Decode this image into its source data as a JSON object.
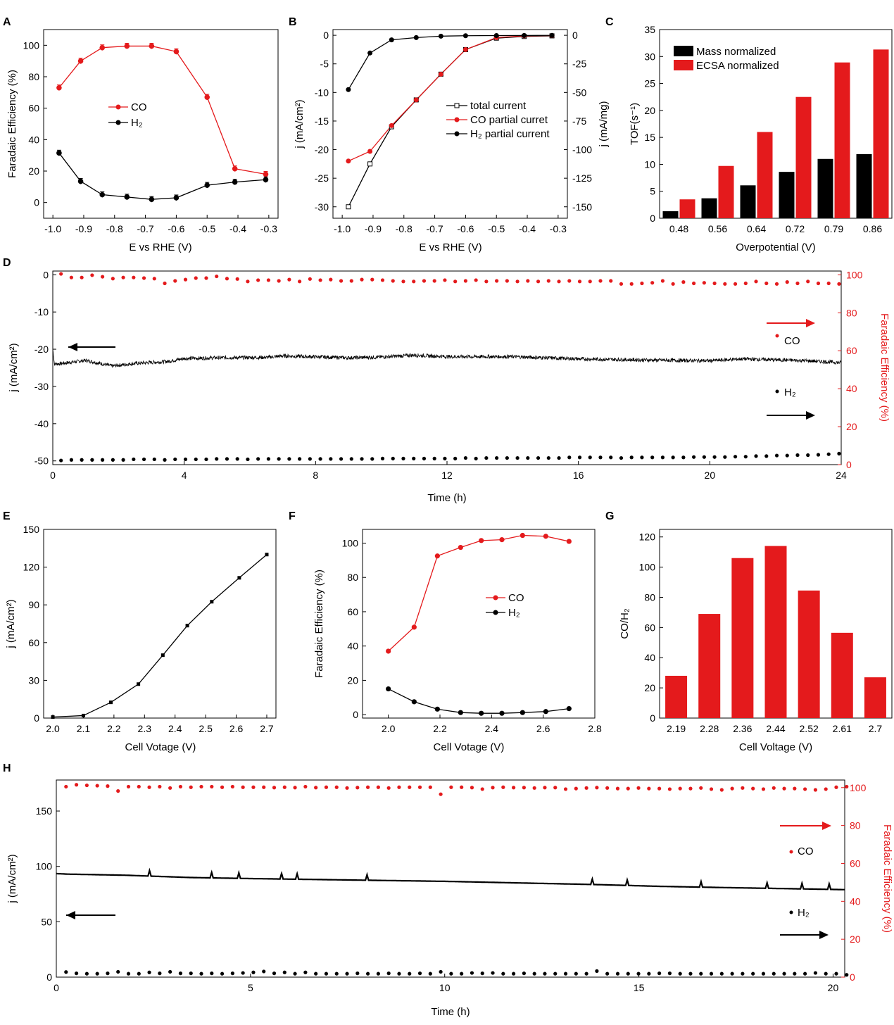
{
  "colors": {
    "red": "#e41a1c",
    "black": "#000000"
  },
  "chart_data": [
    {
      "panel": "A",
      "type": "line",
      "xlabel": "E vs RHE (V)",
      "ylabel": "Faradaic Efficiency (%)",
      "xlim": [
        -1.03,
        -0.27
      ],
      "ylim": [
        -10,
        110
      ],
      "xticks": [
        "-1.0",
        "-0.9",
        "-0.8",
        "-0.7",
        "-0.6",
        "-0.5",
        "-0.4",
        "-0.3"
      ],
      "xtick_values": [
        -1.0,
        -0.9,
        -0.8,
        -0.7,
        -0.6,
        -0.5,
        -0.4,
        -0.3
      ],
      "yticks": [
        "0",
        "20",
        "40",
        "60",
        "80",
        "100"
      ],
      "ytick_values": [
        0,
        20,
        40,
        60,
        80,
        100
      ],
      "legend": [
        "CO",
        "H₂"
      ],
      "series": [
        {
          "name": "CO",
          "color": "#e41a1c",
          "x": [
            -0.98,
            -0.91,
            -0.84,
            -0.76,
            -0.68,
            -0.6,
            -0.5,
            -0.41,
            -0.31
          ],
          "y": [
            73,
            90,
            98.5,
            99.5,
            99.5,
            96,
            67,
            21.5,
            18
          ]
        },
        {
          "name": "H₂",
          "color": "#000000",
          "x": [
            -0.98,
            -0.91,
            -0.84,
            -0.76,
            -0.68,
            -0.6,
            -0.5,
            -0.41,
            -0.31
          ],
          "y": [
            31.5,
            13.5,
            5,
            3.5,
            2,
            3,
            11,
            13,
            14.5
          ]
        }
      ]
    },
    {
      "panel": "B",
      "type": "line",
      "xlabel": "E vs RHE (V)",
      "ylabel": "j (mA/cm²)",
      "ylabel_right": "j (mA/mg)",
      "xlim": [
        -1.03,
        -0.27
      ],
      "ylim": [
        -32,
        1
      ],
      "ylim_right": [
        -160,
        5
      ],
      "xticks": [
        "-1.0",
        "-0.9",
        "-0.8",
        "-0.7",
        "-0.6",
        "-0.5",
        "-0.4",
        "-0.3"
      ],
      "xtick_values": [
        -1.0,
        -0.9,
        -0.8,
        -0.7,
        -0.6,
        -0.5,
        -0.4,
        -0.3
      ],
      "yticks": [
        "0",
        "-5",
        "-10",
        "-15",
        "-20",
        "-25",
        "-30"
      ],
      "ytick_values": [
        0,
        -5,
        -10,
        -15,
        -20,
        -25,
        -30
      ],
      "yticks_right": [
        "0",
        "-25",
        "-50",
        "-75",
        "-100",
        "-125",
        "-150"
      ],
      "ytick_values_right": [
        0,
        -25,
        -50,
        -75,
        -100,
        -125,
        -150
      ],
      "legend": [
        "total current",
        "CO partial curret",
        "H₂ partial current"
      ],
      "series": [
        {
          "name": "total current",
          "color": "#000000",
          "x": [
            -0.98,
            -0.91,
            -0.84,
            -0.76,
            -0.68,
            -0.6,
            -0.5,
            -0.41,
            -0.32
          ],
          "y": [
            -30,
            -22.5,
            -16,
            -11.3,
            -6.8,
            -2.5,
            -0.5,
            -0.2,
            -0.1
          ]
        },
        {
          "name": "CO partial curret",
          "color": "#e41a1c",
          "x": [
            -0.98,
            -0.91,
            -0.84,
            -0.76,
            -0.68,
            -0.6,
            -0.5,
            -0.41,
            -0.32
          ],
          "y": [
            -22,
            -20.3,
            -15.8,
            -11.3,
            -6.8,
            -2.5,
            -0.4,
            -0.1,
            -0.05
          ]
        },
        {
          "name": "H₂ partial current",
          "color": "#000000",
          "x": [
            -0.98,
            -0.91,
            -0.84,
            -0.76,
            -0.68,
            -0.6,
            -0.5,
            -0.41,
            -0.32
          ],
          "y": [
            -9.5,
            -3.1,
            -0.8,
            -0.4,
            -0.15,
            -0.08,
            -0.05,
            -0.03,
            -0.02
          ]
        }
      ]
    },
    {
      "panel": "C",
      "type": "bar",
      "xlabel": "Overpotential (V)",
      "ylabel": "TOF(s⁻¹)",
      "ylim": [
        0,
        35
      ],
      "yticks": [
        "0",
        "5",
        "10",
        "15",
        "20",
        "25",
        "30",
        "35"
      ],
      "ytick_values": [
        0,
        5,
        10,
        15,
        20,
        25,
        30,
        35
      ],
      "categories": [
        "0.48",
        "0.56",
        "0.64",
        "0.72",
        "0.79",
        "0.86"
      ],
      "legend": [
        "Mass normalized",
        "ECSA normalized"
      ],
      "series": [
        {
          "name": "Mass normalized",
          "color": "#000000",
          "values": [
            1.3,
            3.7,
            6.1,
            8.6,
            11.0,
            11.9
          ]
        },
        {
          "name": "ECSA normalized",
          "color": "#e41a1c",
          "values": [
            3.5,
            9.7,
            16.0,
            22.5,
            28.9,
            31.3
          ]
        }
      ]
    },
    {
      "panel": "D",
      "type": "line",
      "xlabel": "Time (h)",
      "ylabel": "j (mA/cm²)",
      "ylabel_right": "Faradaic Efficiency (%)",
      "xlim": [
        0,
        24
      ],
      "ylim": [
        -51,
        1
      ],
      "ylim_right": [
        0,
        102
      ],
      "xticks": [
        "0",
        "4",
        "8",
        "12",
        "16",
        "20",
        "24"
      ],
      "xtick_values": [
        0,
        4,
        8,
        12,
        16,
        20,
        24
      ],
      "yticks": [
        "0",
        "-10",
        "-20",
        "-30",
        "-40",
        "-50"
      ],
      "ytick_values": [
        0,
        -10,
        -20,
        -30,
        -40,
        -50
      ],
      "yticks_right": [
        "0",
        "20",
        "40",
        "60",
        "80",
        "100"
      ],
      "ytick_values_right": [
        0,
        20,
        40,
        60,
        80,
        100
      ],
      "annotations": [
        "CO",
        "H₂"
      ],
      "series": [
        {
          "name": "j",
          "color": "#000000",
          "t": [
            0,
            0.05,
            0.3,
            1,
            1.8,
            2.5,
            3.5,
            4,
            5,
            6.5,
            7,
            9,
            10,
            11,
            12,
            14,
            15,
            16,
            18,
            20,
            21,
            23,
            24
          ],
          "y": [
            -20,
            -24,
            -23.8,
            -23,
            -24.5,
            -23.8,
            -23.3,
            -22.5,
            -22.3,
            -22.2,
            -21.8,
            -22.3,
            -22.1,
            -21.6,
            -22,
            -22,
            -22.3,
            -22.6,
            -22.9,
            -23.1,
            -22.6,
            -23.1,
            -23.6
          ]
        },
        {
          "name": "CO",
          "color": "#e41a1c",
          "y": [
            100.5,
            98.6,
            98.6,
            99.8,
            99,
            98,
            98.6,
            98.6,
            98.3,
            98,
            95.5,
            96.8,
            97.5,
            98.3,
            98.3,
            99.2,
            98,
            97.8,
            96.5,
            97.2,
            97.2,
            96.8,
            97.5,
            96.5,
            97.8,
            97.2,
            97.5,
            96.8,
            96.8,
            97.5,
            97.5,
            97.2,
            96.8,
            96.5,
            96.5,
            96.8,
            96.8,
            97.2,
            96.5,
            96.8,
            97.2,
            96.5,
            96.8,
            96.8,
            96.5,
            96.8,
            96.5,
            96.8,
            96.5,
            96.8,
            96.5,
            96.5,
            96.8,
            96.8,
            95.2,
            95.2,
            95.5,
            95.8,
            96.8,
            95.2,
            96.2,
            95.5,
            95.8,
            95.5,
            95.2,
            95.2,
            95.5,
            96.5,
            95.5,
            95.2,
            96.2,
            95.5,
            96.5,
            95.5,
            95.5,
            95.2
          ]
        },
        {
          "name": "H₂",
          "color": "#000000",
          "y": [
            2.2,
            2.5,
            2.5,
            2.5,
            2.5,
            2.5,
            2.5,
            2.8,
            2.8,
            2.8,
            2.5,
            2.8,
            2.8,
            2.8,
            2.8,
            3,
            3,
            3,
            2.8,
            3,
            3,
            3,
            3,
            3,
            3,
            3,
            3,
            3,
            3,
            3,
            3,
            3.2,
            3.2,
            3.2,
            3.2,
            3.2,
            3.2,
            3.2,
            3.2,
            3.5,
            3.2,
            3.5,
            3.5,
            3.5,
            3.5,
            3.5,
            3.5,
            3.5,
            3.5,
            3.8,
            3.8,
            3.8,
            3.8,
            3.8,
            3.5,
            3.8,
            3.8,
            3.8,
            3.8,
            3.8,
            3.8,
            4,
            4,
            4,
            4,
            4.2,
            4.2,
            4.5,
            4.5,
            4.8,
            4.8,
            5,
            5,
            5.2,
            5.5,
            5.8
          ]
        }
      ]
    },
    {
      "panel": "E",
      "type": "line",
      "xlabel": "Cell Votage (V)",
      "ylabel": "j (mA/cm²)",
      "xlim": [
        1.97,
        2.73
      ],
      "ylim": [
        0,
        150
      ],
      "xticks": [
        "2.0",
        "2.1",
        "2.2",
        "2.3",
        "2.4",
        "2.5",
        "2.6",
        "2.7"
      ],
      "xtick_values": [
        2.0,
        2.1,
        2.2,
        2.3,
        2.4,
        2.5,
        2.6,
        2.7
      ],
      "yticks": [
        "0",
        "30",
        "60",
        "90",
        "120",
        "150"
      ],
      "ytick_values": [
        0,
        30,
        60,
        90,
        120,
        150
      ],
      "series": [
        {
          "name": "j",
          "color": "#000000",
          "x": [
            2.0,
            2.1,
            2.19,
            2.28,
            2.36,
            2.44,
            2.52,
            2.61,
            2.7
          ],
          "y": [
            0.8,
            2,
            12.5,
            27,
            50,
            73.5,
            92.5,
            111.5,
            130
          ]
        }
      ]
    },
    {
      "panel": "F",
      "type": "line",
      "xlabel": "Cell Votage (V)",
      "ylabel": "Faradaic Efficiency (%)",
      "xlim": [
        1.9,
        2.8
      ],
      "ylim": [
        -2,
        108
      ],
      "xticks": [
        "2.0",
        "2.2",
        "2.4",
        "2.6",
        "2.8"
      ],
      "xtick_values": [
        2.0,
        2.2,
        2.4,
        2.6,
        2.8
      ],
      "yticks": [
        "0",
        "20",
        "40",
        "60",
        "80",
        "100"
      ],
      "ytick_values": [
        0,
        20,
        40,
        60,
        80,
        100
      ],
      "legend": [
        "CO",
        "H₂"
      ],
      "series": [
        {
          "name": "CO",
          "color": "#e41a1c",
          "x": [
            2.0,
            2.1,
            2.19,
            2.28,
            2.36,
            2.44,
            2.52,
            2.61,
            2.7
          ],
          "y": [
            37,
            51,
            92.5,
            97.5,
            101.5,
            102,
            104.5,
            104,
            101
          ]
        },
        {
          "name": "H₂",
          "color": "#000000",
          "x": [
            2.0,
            2.1,
            2.19,
            2.28,
            2.36,
            2.44,
            2.52,
            2.61,
            2.7
          ],
          "y": [
            15,
            7.5,
            3.2,
            1.2,
            0.8,
            0.8,
            1.2,
            1.8,
            3.5
          ]
        }
      ]
    },
    {
      "panel": "G",
      "type": "bar",
      "xlabel": "Cell Voltage (V)",
      "ylabel": "CO/H₂",
      "ylim": [
        0,
        125
      ],
      "yticks": [
        "0",
        "20",
        "40",
        "60",
        "80",
        "100",
        "120"
      ],
      "ytick_values": [
        0,
        20,
        40,
        60,
        80,
        100,
        120
      ],
      "categories": [
        "2.19",
        "2.28",
        "2.36",
        "2.44",
        "2.52",
        "2.61",
        "2.7"
      ],
      "series": [
        {
          "name": "CO/H₂",
          "color": "#e41a1c",
          "values": [
            28,
            69,
            106,
            114,
            84.5,
            56.5,
            27
          ]
        }
      ]
    },
    {
      "panel": "H",
      "type": "line",
      "xlabel": "Time (h)",
      "ylabel": "j (mA/cm²)",
      "ylabel_right": "Faradaic Efficiency (%)",
      "xlim": [
        0,
        20.3
      ],
      "ylim": [
        0,
        178
      ],
      "ylim_right": [
        0,
        104
      ],
      "xticks": [
        "0",
        "5",
        "10",
        "15",
        "20"
      ],
      "xtick_values": [
        0,
        5,
        10,
        15,
        20
      ],
      "yticks": [
        "0",
        "50",
        "100",
        "150"
      ],
      "ytick_values": [
        0,
        50,
        100,
        150
      ],
      "yticks_right": [
        "0",
        "20",
        "40",
        "60",
        "80",
        "100"
      ],
      "ytick_values_right": [
        0,
        20,
        40,
        60,
        80,
        100
      ],
      "annotations": [
        "CO",
        "H₂"
      ],
      "series": [
        {
          "name": "j",
          "color": "#000000",
          "t": [
            0,
            0.3,
            1.8,
            3.4,
            5,
            7,
            10,
            12,
            14,
            15.5,
            17,
            20.3
          ],
          "y": [
            93.5,
            93,
            92,
            90,
            89,
            88,
            86.5,
            85,
            83.5,
            82,
            81,
            79
          ]
        },
        {
          "name": "CO",
          "color": "#e41a1c",
          "y": [
            100.5,
            101.5,
            101.2,
            101,
            100.8,
            98.2,
            100.5,
            100.5,
            100.2,
            100.5,
            99.8,
            100.5,
            100.2,
            100.5,
            100.5,
            100.2,
            100.5,
            100.2,
            100.2,
            100.2,
            100,
            100.2,
            100,
            100.5,
            100,
            100.2,
            100.2,
            99.8,
            100,
            100.2,
            100.2,
            99.8,
            100.2,
            100.2,
            100.2,
            100.2,
            96.5,
            100.2,
            100.2,
            100,
            99.2,
            100,
            100.2,
            100,
            100,
            99.8,
            100,
            100,
            99.2,
            99.5,
            99.8,
            100,
            99.8,
            99.5,
            99.5,
            99.8,
            99.5,
            99.5,
            99.2,
            99.5,
            99.5,
            99.8,
            99.2,
            98.8,
            99.5,
            99.8,
            99.5,
            99.2,
            99.8,
            99.5,
            99.5,
            99.2,
            98.8,
            99.2,
            100.2,
            100.5
          ]
        },
        {
          "name": "H₂",
          "color": "#000000",
          "y": [
            2.7,
            2,
            1.8,
            1.8,
            2,
            2.8,
            1.8,
            1.8,
            2.5,
            2,
            2.8,
            2,
            2,
            1.8,
            2,
            1.8,
            2,
            2.2,
            2.5,
            3,
            2,
            2.5,
            1.8,
            2.5,
            1.8,
            1.8,
            1.8,
            1.8,
            2,
            1.8,
            1.8,
            2,
            1.8,
            1.8,
            2,
            1.8,
            2.8,
            1.8,
            1.8,
            2.2,
            2,
            2.2,
            1.8,
            1.8,
            2,
            1.8,
            1.8,
            1.8,
            1.8,
            1.8,
            1.8,
            3.2,
            1.8,
            1.8,
            1.8,
            1.8,
            1.8,
            2,
            2,
            1.8,
            1.8,
            1.8,
            1.8,
            1.8,
            1.8,
            1.8,
            1.8,
            1.8,
            1.8,
            1.8,
            1.8,
            1.8,
            2.2,
            1.8,
            1.8,
            1.2
          ]
        }
      ]
    }
  ]
}
